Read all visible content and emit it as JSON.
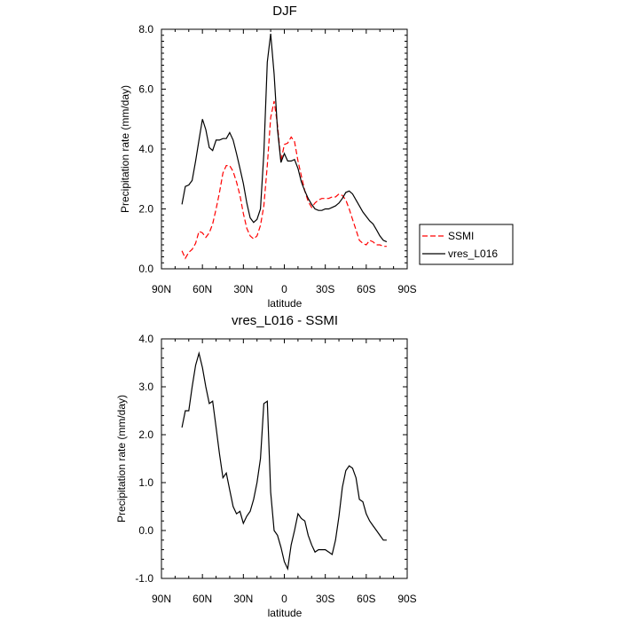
{
  "chart_data": [
    {
      "type": "line",
      "title": "DJF",
      "xlabel": "latitude",
      "ylabel": "Precipitation rate (mm/day)",
      "xlim": [
        -90,
        90
      ],
      "ylim": [
        0,
        8
      ],
      "xticks": [
        -90,
        -60,
        -30,
        0,
        30,
        60,
        90
      ],
      "xtick_labels": [
        "90N",
        "60N",
        "30N",
        "0",
        "30S",
        "60S",
        "90S"
      ],
      "yticks": [
        0,
        2,
        4,
        6,
        8
      ],
      "ytick_labels": [
        "0.0",
        "2.0",
        "4.0",
        "6.0",
        "8.0"
      ],
      "legend": {
        "position": "right",
        "entries": [
          {
            "name": "SSMI",
            "style": "dashed",
            "color": "#ff0000"
          },
          {
            "name": "vres_L016",
            "style": "solid",
            "color": "#000000"
          }
        ]
      },
      "series": [
        {
          "name": "SSMI",
          "color": "#ff0000",
          "dash": "dashed",
          "x": [
            -75,
            -72.5,
            -70,
            -67.5,
            -65,
            -62.5,
            -60,
            -57.5,
            -55,
            -52.5,
            -50,
            -47.5,
            -45,
            -42.5,
            -40,
            -37.5,
            -35,
            -32.5,
            -30,
            -27.5,
            -25,
            -22.5,
            -20,
            -17.5,
            -15,
            -12.5,
            -10,
            -7.5,
            -5,
            -2.5,
            0,
            2.5,
            5,
            7.5,
            10,
            12.5,
            15,
            17.5,
            20,
            22.5,
            25,
            27.5,
            30,
            32.5,
            35,
            37.5,
            40,
            42.5,
            45,
            47.5,
            50,
            52.5,
            55,
            57.5,
            60,
            62.5,
            65,
            67.5,
            70,
            72.5,
            75
          ],
          "y": [
            0.6,
            0.35,
            0.55,
            0.65,
            0.85,
            1.25,
            1.2,
            1.05,
            1.2,
            1.5,
            2.0,
            2.55,
            3.2,
            3.45,
            3.45,
            3.25,
            2.9,
            2.45,
            1.85,
            1.35,
            1.1,
            1.0,
            1.1,
            1.45,
            2.1,
            3.45,
            5.05,
            5.6,
            4.8,
            3.6,
            4.15,
            4.2,
            4.4,
            4.25,
            3.6,
            3.1,
            2.6,
            2.25,
            2.05,
            2.2,
            2.3,
            2.35,
            2.35,
            2.35,
            2.4,
            2.4,
            2.5,
            2.45,
            2.3,
            2.0,
            1.65,
            1.3,
            0.95,
            0.85,
            0.8,
            0.95,
            0.9,
            0.8,
            0.8,
            0.75,
            0.75
          ]
        },
        {
          "name": "vres_L016",
          "color": "#000000",
          "dash": "solid",
          "x": [
            -75,
            -72.5,
            -70,
            -67.5,
            -65,
            -62.5,
            -60,
            -57.5,
            -55,
            -52.5,
            -50,
            -47.5,
            -45,
            -42.5,
            -40,
            -37.5,
            -35,
            -32.5,
            -30,
            -27.5,
            -25,
            -22.5,
            -20,
            -17.5,
            -15,
            -12.5,
            -10,
            -7.5,
            -5,
            -2.5,
            0,
            2.5,
            5,
            7.5,
            10,
            12.5,
            15,
            17.5,
            20,
            22.5,
            25,
            27.5,
            30,
            32.5,
            35,
            37.5,
            40,
            42.5,
            45,
            47.5,
            50,
            52.5,
            55,
            57.5,
            60,
            62.5,
            65,
            67.5,
            70,
            72.5,
            75
          ],
          "y": [
            2.15,
            2.75,
            2.8,
            2.95,
            3.6,
            4.3,
            5.0,
            4.65,
            4.05,
            3.95,
            4.3,
            4.3,
            4.35,
            4.35,
            4.55,
            4.3,
            3.85,
            3.35,
            2.85,
            2.2,
            1.7,
            1.55,
            1.65,
            2.0,
            3.85,
            6.9,
            7.85,
            6.5,
            4.65,
            3.55,
            3.85,
            3.6,
            3.6,
            3.65,
            3.35,
            2.9,
            2.6,
            2.35,
            2.15,
            2.0,
            1.95,
            1.95,
            2.0,
            2.0,
            2.05,
            2.1,
            2.2,
            2.35,
            2.55,
            2.6,
            2.5,
            2.3,
            2.1,
            1.9,
            1.75,
            1.6,
            1.5,
            1.3,
            1.1,
            0.95,
            0.9
          ]
        }
      ]
    },
    {
      "type": "line",
      "title": "vres_L016 - SSMI",
      "xlabel": "latitude",
      "ylabel": "Precipitation rate (mm/day)",
      "xlim": [
        -90,
        90
      ],
      "ylim": [
        -1,
        4
      ],
      "xticks": [
        -90,
        -60,
        -30,
        0,
        30,
        60,
        90
      ],
      "xtick_labels": [
        "90N",
        "60N",
        "30N",
        "0",
        "30S",
        "60S",
        "90S"
      ],
      "yticks": [
        -1,
        0,
        1,
        2,
        3,
        4
      ],
      "ytick_labels": [
        "-1.0",
        "0.0",
        "1.0",
        "2.0",
        "3.0",
        "4.0"
      ],
      "series": [
        {
          "name": "vres_L016 - SSMI",
          "color": "#000000",
          "dash": "solid",
          "x": [
            -75,
            -72.5,
            -70,
            -67.5,
            -65,
            -62.5,
            -60,
            -57.5,
            -55,
            -52.5,
            -50,
            -47.5,
            -45,
            -42.5,
            -40,
            -37.5,
            -35,
            -32.5,
            -30,
            -27.5,
            -25,
            -22.5,
            -20,
            -17.5,
            -15,
            -12.5,
            -10,
            -7.5,
            -5,
            -2.5,
            0,
            2.5,
            5,
            7.5,
            10,
            12.5,
            15,
            17.5,
            20,
            22.5,
            25,
            27.5,
            30,
            32.5,
            35,
            37.5,
            40,
            42.5,
            45,
            47.5,
            50,
            52.5,
            55,
            57.5,
            60,
            62.5,
            65,
            67.5,
            70,
            72.5,
            75
          ],
          "y": [
            2.15,
            2.5,
            2.5,
            3.0,
            3.45,
            3.7,
            3.4,
            3.0,
            2.65,
            2.7,
            2.15,
            1.6,
            1.1,
            1.2,
            0.85,
            0.5,
            0.35,
            0.4,
            0.15,
            0.3,
            0.4,
            0.65,
            1.0,
            1.5,
            2.65,
            2.7,
            0.8,
            0.0,
            -0.1,
            -0.35,
            -0.65,
            -0.8,
            -0.3,
            0.0,
            0.35,
            0.25,
            0.2,
            -0.1,
            -0.3,
            -0.45,
            -0.4,
            -0.4,
            -0.4,
            -0.45,
            -0.5,
            -0.2,
            0.3,
            0.9,
            1.25,
            1.35,
            1.3,
            1.1,
            0.65,
            0.6,
            0.35,
            0.2,
            0.1,
            0.0,
            -0.1,
            -0.2,
            -0.2
          ]
        }
      ]
    }
  ]
}
